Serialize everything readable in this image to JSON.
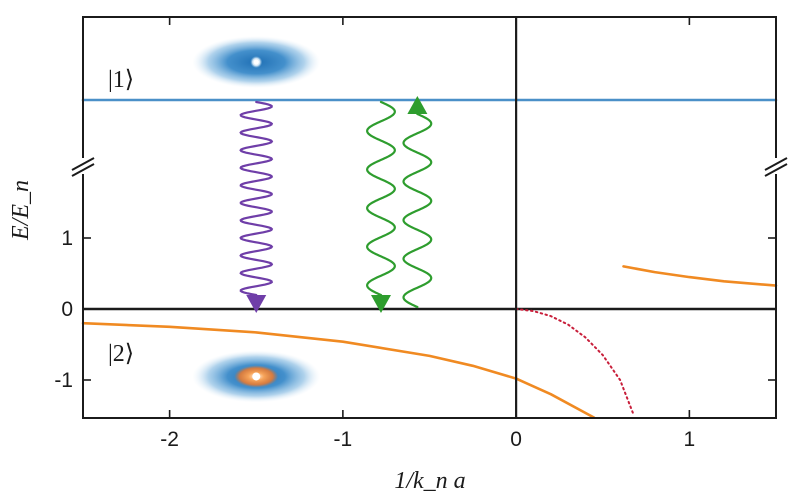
{
  "chart_data": {
    "type": "line",
    "title": "",
    "xlabel": "1/k_n a",
    "ylabel": "E/E_n",
    "xlim": [
      -2.5,
      1.5
    ],
    "ylim": [
      -1.6,
      4.2
    ],
    "xticks": [
      -2,
      -1,
      0,
      1
    ],
    "xtick_labels": [
      "-2",
      "-1",
      "0",
      "1"
    ],
    "yticks": [
      -1,
      0,
      1
    ],
    "ytick_labels": [
      "-1",
      "0",
      "1"
    ],
    "axis_break": "y",
    "grid": false,
    "legend": "none",
    "colors": {
      "frame": "#1b1b1b",
      "state1": "#4a90c8",
      "bound": "#f08a22",
      "dotted": "#c81e3a",
      "purple": "#6f3ea8",
      "green": "#2e9d2e",
      "cloud": "#2f7fc1",
      "cloud_core_orange": "#f07a2a"
    },
    "state_labels": {
      "upper": "|1⟩",
      "lower": "|2⟩"
    },
    "series": [
      {
        "style": "solid",
        "color_key": "state1",
        "x": [
          -2.5,
          1.5
        ],
        "y": [
          3.0,
          3.0
        ]
      },
      {
        "style": "solid",
        "color_key": "bound",
        "x": [
          -2.5,
          -2.0,
          -1.5,
          -1.0,
          -0.5,
          -0.25,
          0.0,
          0.2,
          0.45
        ],
        "y": [
          -0.2,
          -0.25,
          -0.33,
          -0.46,
          -0.66,
          -0.8,
          -0.98,
          -1.2,
          -1.53
        ]
      },
      {
        "style": "dotted",
        "color_key": "dotted",
        "x": [
          0.0,
          0.1,
          0.2,
          0.3,
          0.4,
          0.5,
          0.6,
          0.68
        ],
        "y": [
          0.0,
          -0.03,
          -0.1,
          -0.22,
          -0.4,
          -0.65,
          -1.0,
          -1.5
        ]
      },
      {
        "style": "solid",
        "color_key": "bound",
        "x": [
          0.62,
          0.8,
          1.0,
          1.2,
          1.5
        ],
        "y": [
          0.6,
          0.52,
          0.45,
          0.39,
          0.33
        ]
      }
    ],
    "photons": [
      {
        "x": -1.5,
        "y_start": 3.0,
        "y_end": 0.0,
        "color_key": "purple",
        "direction": "down",
        "cycles": 11,
        "amplitude": 0.09
      },
      {
        "x": -0.78,
        "y_start": 3.0,
        "y_end": 0.0,
        "color_key": "green",
        "direction": "down",
        "cycles": 5,
        "amplitude": 0.08
      },
      {
        "x": -0.57,
        "y_start": 0.0,
        "y_end": 3.0,
        "color_key": "green",
        "direction": "up",
        "cycles": 5,
        "amplitude": 0.08
      }
    ],
    "clouds": [
      {
        "x": -1.5,
        "y": 3.55,
        "core": "white"
      },
      {
        "x": -1.5,
        "y": -0.95,
        "core": "orange"
      }
    ]
  }
}
